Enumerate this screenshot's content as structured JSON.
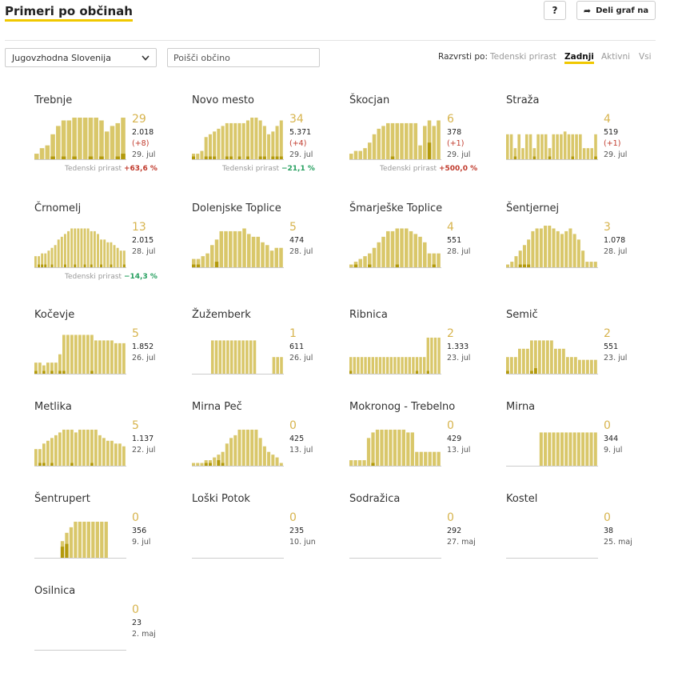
{
  "header": {
    "title": "Primeri po občinah",
    "help_label": "?",
    "share_label": "Deli graf na"
  },
  "filters": {
    "region_selected": "Jugovzhodna Slovenija",
    "search_placeholder": "Poišči občino",
    "sort_label": "Razvrsti po:",
    "sort_options": [
      "Tedenski prirast",
      "Zadnji",
      "Aktivni",
      "Vsi"
    ],
    "sort_active": "Zadnji"
  },
  "colors": {
    "accent": "#f0c800",
    "bar_active": "#d9c76a",
    "bar_new": "#b39a0c",
    "value": "#d7b44e",
    "increase": "#c0392b",
    "decrease": "#27a060"
  },
  "municipalities": [
    {
      "name": "Trebnje",
      "value": "29",
      "total": "2.018",
      "change": "(+8)",
      "date": "29. jul",
      "growth_label": "Tedenski prirast",
      "growth": "+63,6 %",
      "growth_dir": "up",
      "bars": [
        2,
        4,
        5,
        9,
        12,
        14,
        14,
        15,
        15,
        15,
        15,
        15,
        14,
        10,
        12,
        13,
        15
      ],
      "news": [
        0,
        0,
        0,
        1,
        0,
        1,
        0,
        1,
        0,
        0,
        1,
        0,
        1,
        0,
        0,
        1,
        2
      ]
    },
    {
      "name": "Novo mesto",
      "value": "34",
      "total": "5.371",
      "change": "(+4)",
      "date": "29. jul",
      "growth_label": "Tedenski prirast",
      "growth": "−21,1 %",
      "growth_dir": "down",
      "bars": [
        2,
        2,
        3,
        8,
        9,
        10,
        11,
        12,
        13,
        13,
        13,
        13,
        13,
        14,
        15,
        15,
        14,
        12,
        9,
        10,
        12,
        14
      ],
      "news": [
        1,
        0,
        0,
        1,
        1,
        1,
        0,
        0,
        1,
        1,
        0,
        1,
        0,
        1,
        0,
        0,
        1,
        1,
        0,
        1,
        1,
        1
      ]
    },
    {
      "name": "Škocjan",
      "value": "6",
      "total": "378",
      "change": "(+1)",
      "date": "29. jul",
      "growth_label": "Tedenski prirast",
      "growth": "+500,0 %",
      "growth_dir": "up",
      "bars": [
        2,
        3,
        3,
        4,
        6,
        9,
        11,
        12,
        13,
        13,
        13,
        13,
        13,
        13,
        13,
        5,
        12,
        14,
        12,
        14
      ],
      "news": [
        0,
        0,
        0,
        0,
        0,
        0,
        0,
        0,
        0,
        1,
        0,
        0,
        0,
        0,
        0,
        0,
        0,
        6,
        0,
        0
      ]
    },
    {
      "name": "Straža",
      "value": "4",
      "total": "519",
      "change": "(+1)",
      "date": "29. jul",
      "growth_label": "",
      "growth": "",
      "growth_dir": "",
      "bars": [
        9,
        9,
        4,
        9,
        4,
        9,
        9,
        4,
        9,
        9,
        9,
        4,
        9,
        9,
        9,
        10,
        9,
        9,
        9,
        9,
        4,
        4,
        4,
        9
      ],
      "news": [
        0,
        0,
        1,
        0,
        0,
        0,
        0,
        1,
        0,
        0,
        0,
        1,
        0,
        0,
        0,
        0,
        0,
        1,
        0,
        0,
        0,
        0,
        0,
        1
      ]
    },
    {
      "name": "Črnomelj",
      "value": "13",
      "total": "2.015",
      "change": "",
      "date": "28. jul",
      "growth_label": "Tedenski prirast",
      "growth": "−14,3 %",
      "growth_dir": "down",
      "bars": [
        4,
        4,
        5,
        5,
        6,
        7,
        8,
        10,
        11,
        12,
        13,
        14,
        14,
        14,
        14,
        14,
        14,
        13,
        13,
        12,
        10,
        10,
        9,
        9,
        8,
        7,
        6,
        6
      ],
      "news": [
        0,
        1,
        1,
        1,
        0,
        1,
        0,
        0,
        0,
        1,
        0,
        0,
        1,
        0,
        0,
        1,
        0,
        1,
        0,
        0,
        1,
        0,
        0,
        1,
        0,
        0,
        0,
        1
      ]
    },
    {
      "name": "Dolenjske Toplice",
      "value": "5",
      "total": "474",
      "change": "",
      "date": "28. jul",
      "growth_label": "",
      "growth": "",
      "growth_dir": "",
      "bars": [
        3,
        3,
        4,
        5,
        8,
        10,
        13,
        13,
        13,
        13,
        13,
        14,
        12,
        11,
        11,
        9,
        8,
        6,
        7,
        7
      ],
      "news": [
        1,
        1,
        0,
        0,
        0,
        2,
        0,
        0,
        0,
        0,
        0,
        0,
        0,
        0,
        0,
        0,
        0,
        0,
        0,
        0
      ]
    },
    {
      "name": "Šmarješke Toplice",
      "value": "4",
      "total": "551",
      "change": "",
      "date": "28. jul",
      "growth_label": "",
      "growth": "",
      "growth_dir": "",
      "bars": [
        1,
        2,
        3,
        4,
        5,
        7,
        9,
        11,
        13,
        13,
        14,
        14,
        14,
        13,
        12,
        11,
        9,
        5,
        5,
        5
      ],
      "news": [
        0,
        1,
        0,
        0,
        1,
        0,
        0,
        0,
        0,
        0,
        1,
        0,
        0,
        0,
        0,
        0,
        0,
        0,
        1,
        0
      ]
    },
    {
      "name": "Šentjernej",
      "value": "3",
      "total": "1.078",
      "change": "",
      "date": "28. jul",
      "growth_label": "",
      "growth": "",
      "growth_dir": "",
      "bars": [
        1,
        2,
        4,
        6,
        8,
        10,
        13,
        14,
        14,
        15,
        15,
        14,
        13,
        12,
        13,
        14,
        12,
        10,
        6,
        2,
        2,
        2
      ],
      "news": [
        0,
        0,
        0,
        1,
        1,
        1,
        0,
        0,
        0,
        0,
        0,
        0,
        0,
        0,
        0,
        0,
        0,
        0,
        0,
        0,
        0,
        0
      ]
    },
    {
      "name": "Kočevje",
      "value": "5",
      "total": "1.852",
      "change": "",
      "date": "26. jul",
      "growth_label": "",
      "growth": "",
      "growth_dir": "",
      "bars": [
        4,
        4,
        3,
        4,
        4,
        4,
        7,
        14,
        14,
        14,
        14,
        14,
        14,
        14,
        14,
        12,
        12,
        12,
        12,
        12,
        11,
        11,
        11
      ],
      "news": [
        1,
        0,
        1,
        0,
        1,
        0,
        1,
        1,
        0,
        0,
        0,
        0,
        0,
        0,
        1,
        0,
        0,
        0,
        0,
        0,
        0,
        0,
        0
      ]
    },
    {
      "name": "Žužemberk",
      "value": "1",
      "total": "611",
      "change": "",
      "date": "26. jul",
      "growth_label": "",
      "growth": "",
      "growth_dir": "",
      "bars": [
        0,
        0,
        0,
        0,
        0,
        12,
        12,
        12,
        12,
        12,
        12,
        12,
        12,
        12,
        12,
        12,
        12,
        0,
        0,
        0,
        0,
        6,
        6,
        6
      ],
      "news": [
        0,
        0,
        0,
        0,
        0,
        0,
        0,
        0,
        0,
        0,
        0,
        0,
        0,
        0,
        0,
        0,
        0,
        0,
        0,
        0,
        0,
        0,
        0,
        0
      ]
    },
    {
      "name": "Ribnica",
      "value": "2",
      "total": "1.333",
      "change": "",
      "date": "23. jul",
      "growth_label": "",
      "growth": "",
      "growth_dir": "",
      "bars": [
        6,
        6,
        6,
        6,
        6,
        6,
        6,
        6,
        6,
        6,
        6,
        6,
        6,
        6,
        6,
        6,
        6,
        6,
        6,
        6,
        6,
        13,
        13,
        13,
        13
      ],
      "news": [
        1,
        0,
        0,
        0,
        0,
        0,
        0,
        0,
        0,
        0,
        0,
        0,
        0,
        0,
        0,
        0,
        0,
        0,
        1,
        0,
        0,
        1,
        0,
        0,
        0
      ]
    },
    {
      "name": "Semič",
      "value": "2",
      "total": "551",
      "change": "",
      "date": "23. jul",
      "growth_label": "",
      "growth": "",
      "growth_dir": "",
      "bars": [
        6,
        6,
        6,
        9,
        9,
        9,
        12,
        12,
        12,
        12,
        12,
        12,
        9,
        9,
        9,
        6,
        6,
        6,
        5,
        5,
        5,
        5,
        5
      ],
      "news": [
        1,
        0,
        0,
        0,
        0,
        0,
        1,
        2,
        0,
        0,
        0,
        0,
        0,
        0,
        0,
        0,
        0,
        0,
        0,
        0,
        0,
        0,
        0
      ]
    },
    {
      "name": "Metlika",
      "value": "5",
      "total": "1.137",
      "change": "",
      "date": "22. jul",
      "growth_label": "",
      "growth": "",
      "growth_dir": "",
      "bars": [
        6,
        6,
        8,
        9,
        10,
        11,
        12,
        13,
        13,
        13,
        12,
        13,
        13,
        13,
        13,
        13,
        11,
        10,
        9,
        9,
        8,
        8,
        7
      ],
      "news": [
        0,
        1,
        1,
        0,
        1,
        0,
        0,
        0,
        0,
        1,
        0,
        0,
        0,
        0,
        1,
        0,
        0,
        0,
        0,
        0,
        0,
        0,
        0
      ]
    },
    {
      "name": "Mirna Peč",
      "value": "0",
      "total": "425",
      "change": "",
      "date": "13. jul",
      "growth_label": "",
      "growth": "",
      "growth_dir": "",
      "bars": [
        1,
        1,
        1,
        2,
        2,
        3,
        4,
        5,
        8,
        10,
        11,
        13,
        13,
        13,
        13,
        13,
        10,
        7,
        5,
        4,
        3,
        1
      ],
      "news": [
        0,
        0,
        0,
        1,
        1,
        0,
        2,
        1,
        0,
        0,
        0,
        0,
        0,
        0,
        0,
        0,
        0,
        0,
        0,
        0,
        0,
        0
      ]
    },
    {
      "name": "Mokronog - Trebelno",
      "value": "0",
      "total": "429",
      "change": "",
      "date": "13. jul",
      "growth_label": "",
      "growth": "",
      "growth_dir": "",
      "bars": [
        2,
        2,
        2,
        2,
        10,
        12,
        13,
        13,
        13,
        13,
        13,
        13,
        13,
        12,
        12,
        5,
        5,
        5,
        5,
        5,
        5
      ],
      "news": [
        0,
        0,
        0,
        0,
        0,
        1,
        0,
        0,
        0,
        0,
        0,
        0,
        0,
        0,
        0,
        0,
        0,
        0,
        0,
        0,
        0
      ]
    },
    {
      "name": "Mirna",
      "value": "0",
      "total": "344",
      "change": "",
      "date": "9. jul",
      "growth_label": "",
      "growth": "",
      "growth_dir": "",
      "bars": [
        0,
        0,
        0,
        0,
        0,
        0,
        0,
        0,
        12,
        12,
        12,
        12,
        12,
        12,
        12,
        12,
        12,
        12,
        12,
        12,
        12,
        12
      ],
      "news": [
        0,
        0,
        0,
        0,
        0,
        0,
        0,
        0,
        0,
        0,
        0,
        0,
        0,
        0,
        0,
        0,
        0,
        0,
        0,
        0,
        0,
        0
      ]
    },
    {
      "name": "Šentrupert",
      "value": "0",
      "total": "356",
      "change": "",
      "date": "9. jul",
      "growth_label": "",
      "growth": "",
      "growth_dir": "",
      "bars": [
        0,
        0,
        0,
        0,
        0,
        0,
        6,
        9,
        11,
        13,
        13,
        13,
        13,
        13,
        13,
        13,
        13,
        0,
        0,
        0,
        0
      ],
      "news": [
        0,
        0,
        0,
        0,
        0,
        0,
        4,
        5,
        0,
        0,
        0,
        0,
        0,
        0,
        0,
        0,
        0,
        0,
        0,
        0,
        0
      ]
    },
    {
      "name": "Loški Potok",
      "value": "0",
      "total": "235",
      "change": "",
      "date": "10. jun",
      "growth_label": "",
      "growth": "",
      "growth_dir": "",
      "bars": [],
      "news": []
    },
    {
      "name": "Sodražica",
      "value": "0",
      "total": "292",
      "change": "",
      "date": "27. maj",
      "growth_label": "",
      "growth": "",
      "growth_dir": "",
      "bars": [],
      "news": []
    },
    {
      "name": "Kostel",
      "value": "0",
      "total": "38",
      "change": "",
      "date": "25. maj",
      "growth_label": "",
      "growth": "",
      "growth_dir": "",
      "bars": [],
      "news": []
    },
    {
      "name": "Osilnica",
      "value": "0",
      "total": "23",
      "change": "",
      "date": "2. maj",
      "growth_label": "",
      "growth": "",
      "growth_dir": "",
      "bars": [],
      "news": []
    }
  ]
}
